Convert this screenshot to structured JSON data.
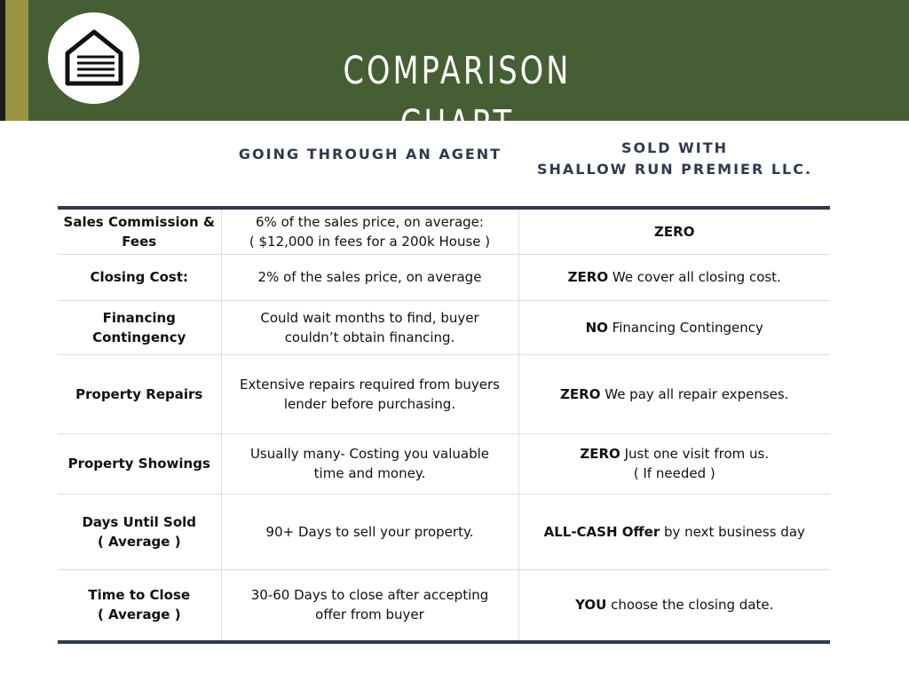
{
  "header": {
    "title": "COMPARISON CHART",
    "logo_icon": "house-icon",
    "colors": {
      "band": "#465e33",
      "gold": "#9a9440",
      "navy": "#2f3a4d"
    }
  },
  "columns": {
    "agent": "GOING THROUGH AN AGENT",
    "ours_line1": "SOLD WITH",
    "ours_line2": "SHALLOW RUN PREMIER LLC."
  },
  "rows": [
    {
      "label": "Sales Commission & Fees",
      "agent_line1": "6% of the sales price, on average:",
      "agent_line2": "( $12,000 in fees for a 200k House )",
      "ours_bold": "ZERO",
      "ours_text": ""
    },
    {
      "label": "Closing Cost:",
      "agent": "2% of the sales price, on average",
      "ours_bold": "ZERO",
      "ours_text": " We cover all closing cost."
    },
    {
      "label_line1": "Financing",
      "label_line2": "Contingency",
      "agent_line1": "Could wait months to find, buyer",
      "agent_line2": "couldn’t obtain financing.",
      "ours_bold": "NO",
      "ours_text": " Financing Contingency"
    },
    {
      "label": "Property Repairs",
      "agent_line1": "Extensive repairs required from buyers",
      "agent_line2": "lender before purchasing.",
      "ours_bold": "ZERO",
      "ours_text": " We pay all repair expenses."
    },
    {
      "label": "Property Showings",
      "agent_line1": "Usually many- Costing you valuable",
      "agent_line2": "time and money.",
      "ours_bold": "ZERO",
      "ours_text": " Just one visit from us.",
      "ours_line2": "( If needed )"
    },
    {
      "label_line1": "Days Until Sold",
      "label_line2": "( Average )",
      "agent": "90+ Days to sell your property.",
      "ours_bold": "ALL-CASH Offer",
      "ours_text": " by next business day"
    },
    {
      "label_line1": "Time to Close",
      "label_line2": "( Average )",
      "agent_line1": "30-60 Days to close after accepting",
      "agent_line2": "offer from buyer",
      "ours_bold": "YOU",
      "ours_text": " choose the closing date."
    }
  ]
}
